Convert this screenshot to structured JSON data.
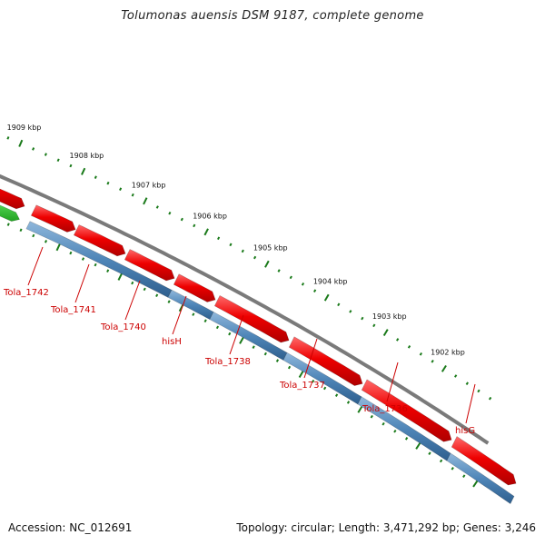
{
  "title": "Tolumonas auensis DSM 9187, complete genome",
  "footer": {
    "accession": "Accession: NC_012691",
    "topology": "Topology: circular; Length: 3,471,292 bp; Genes: 3,246"
  },
  "colors": {
    "backbone": "#7a7a7a",
    "forward_gene": "#ee0000",
    "cds": "#4f86b8",
    "other_feature": "#33cc33",
    "tick": "#1a7a1a",
    "label": "#cc0000"
  },
  "kbp_labels": [
    "1909 kbp",
    "1908 kbp",
    "1907 kbp",
    "1906 kbp",
    "1905 kbp",
    "1904 kbp",
    "1903 kbp",
    "1902 kbp"
  ],
  "gene_labels": [
    "Tola_1742",
    "Tola_1741",
    "Tola_1740",
    "hisH",
    "Tola_1738",
    "Tola_1737",
    "Tola_1736",
    "hisG"
  ]
}
